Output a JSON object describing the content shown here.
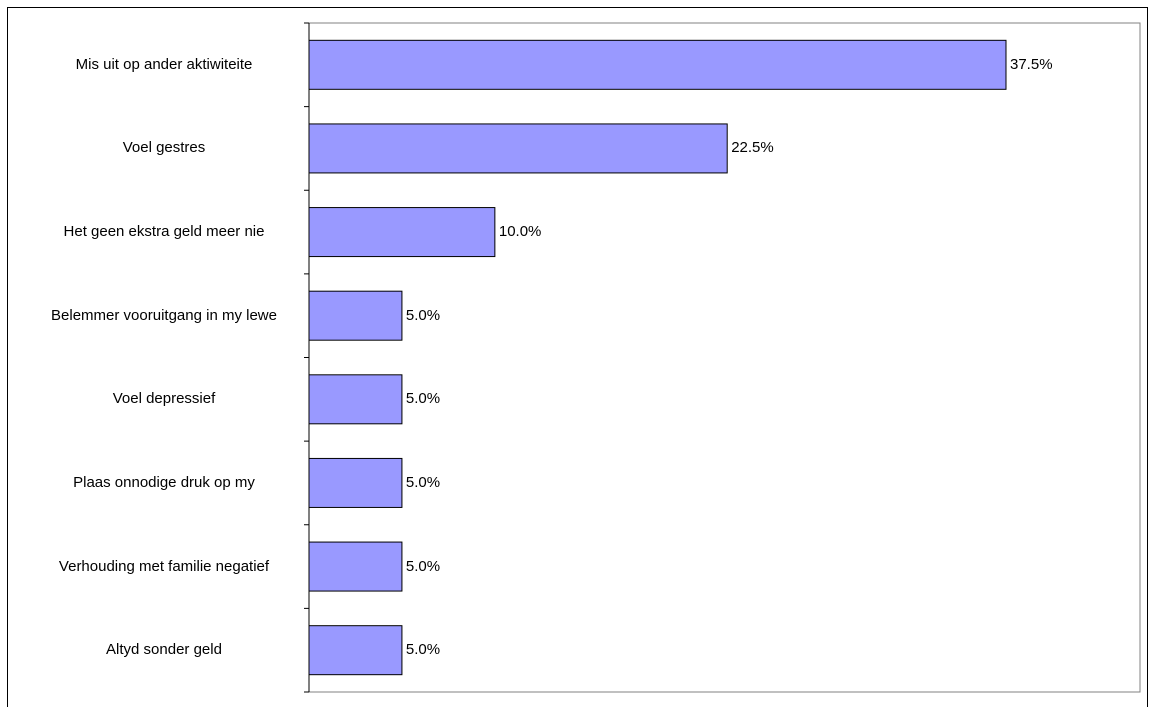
{
  "chart_data": {
    "type": "bar",
    "orientation": "horizontal",
    "categories": [
      "Mis uit op ander aktiwiteite",
      "Voel gestres",
      "Het geen ekstra geld meer nie",
      "Belemmer vooruitgang in my lewe",
      "Voel depressief",
      "Plaas onnodige druk op my",
      "Verhouding met familie negatief",
      "Altyd sonder geld"
    ],
    "values": [
      37.5,
      22.5,
      10.0,
      5.0,
      5.0,
      5.0,
      5.0,
      5.0
    ],
    "value_labels": [
      "37.5%",
      "22.5%",
      "10.0%",
      "5.0%",
      "5.0%",
      "5.0%",
      "5.0%",
      "5.0%"
    ],
    "unit": "%",
    "xlim": [
      0,
      45
    ],
    "title": "",
    "xlabel": "",
    "ylabel": "",
    "grid": false,
    "legend": "none",
    "colors": {
      "bar_fill": "#9999ff",
      "bar_stroke": "#000000",
      "axis": "#000000"
    }
  }
}
